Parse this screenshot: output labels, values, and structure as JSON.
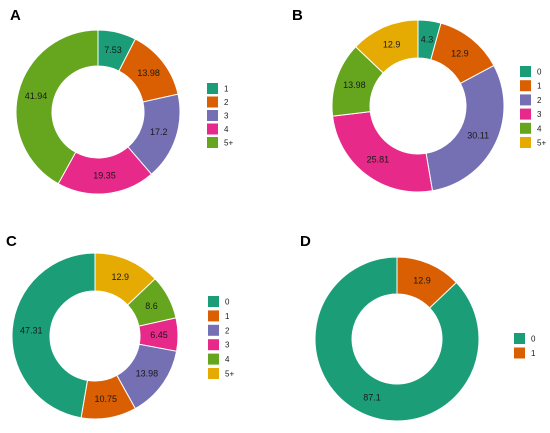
{
  "chart_data": [
    {
      "type": "pie",
      "panel": "A",
      "categories": [
        "1",
        "2",
        "3",
        "4",
        "5+"
      ],
      "values": [
        7.53,
        13.98,
        17.2,
        19.35,
        41.94
      ],
      "labels": [
        "7.53",
        "13.98",
        "17.2",
        "19.35",
        "41.94"
      ],
      "legend": [
        "1",
        "2",
        "3",
        "4",
        "5+"
      ],
      "colors": [
        "#1b9e77",
        "#d95f02",
        "#7570b3",
        "#e7298a",
        "#66a61e"
      ],
      "legend_position": "right"
    },
    {
      "type": "pie",
      "panel": "B",
      "categories": [
        "0",
        "1",
        "2",
        "3",
        "4",
        "5+"
      ],
      "values": [
        4.3,
        12.9,
        30.11,
        25.81,
        13.98,
        12.9
      ],
      "labels": [
        "4.3",
        "12.9",
        "30.11",
        "25.81",
        "13.98",
        "12.9"
      ],
      "legend": [
        "0",
        "1",
        "2",
        "3",
        "4",
        "5+"
      ],
      "colors": [
        "#1b9e77",
        "#d95f02",
        "#7570b3",
        "#e7298a",
        "#66a61e",
        "#e6ab02"
      ],
      "legend_position": "right"
    },
    {
      "type": "pie",
      "panel": "C",
      "categories": [
        "0",
        "1",
        "2",
        "3",
        "4",
        "5+"
      ],
      "values": [
        47.31,
        10.75,
        13.98,
        6.45,
        8.6,
        12.9
      ],
      "labels": [
        "47.31",
        "10.75",
        "13.98",
        "6.45",
        "8.6",
        "12.9"
      ],
      "legend": [
        "0",
        "1",
        "2",
        "3",
        "4",
        "5+"
      ],
      "colors": [
        "#1b9e77",
        "#d95f02",
        "#7570b3",
        "#e7298a",
        "#66a61e",
        "#e6ab02"
      ],
      "legend_position": "right"
    },
    {
      "type": "pie",
      "panel": "D",
      "categories": [
        "0",
        "1"
      ],
      "values": [
        87.1,
        12.9
      ],
      "labels": [
        "87.1",
        "12.9"
      ],
      "legend": [
        "0",
        "1"
      ],
      "colors": [
        "#1b9e77",
        "#d95f02"
      ],
      "legend_position": "right"
    }
  ]
}
